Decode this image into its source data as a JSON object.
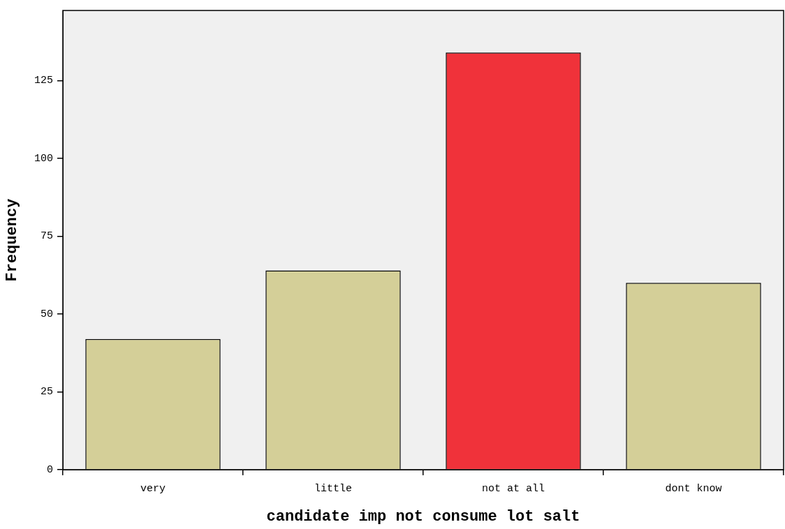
{
  "chart_data": {
    "type": "bar",
    "xlabel": "candidate imp not consume lot salt",
    "ylabel": "Frequency",
    "categories": [
      "very",
      "little",
      "not at all",
      "dont know"
    ],
    "values": [
      42,
      64,
      134,
      60
    ],
    "colors": [
      "#d4cf98",
      "#d4cf98",
      "#f0323a",
      "#d4cf98"
    ],
    "ylim": [
      0,
      147.5
    ],
    "yticks": [
      0,
      25,
      50,
      75,
      100,
      125
    ],
    "grid": false,
    "legend": false
  }
}
